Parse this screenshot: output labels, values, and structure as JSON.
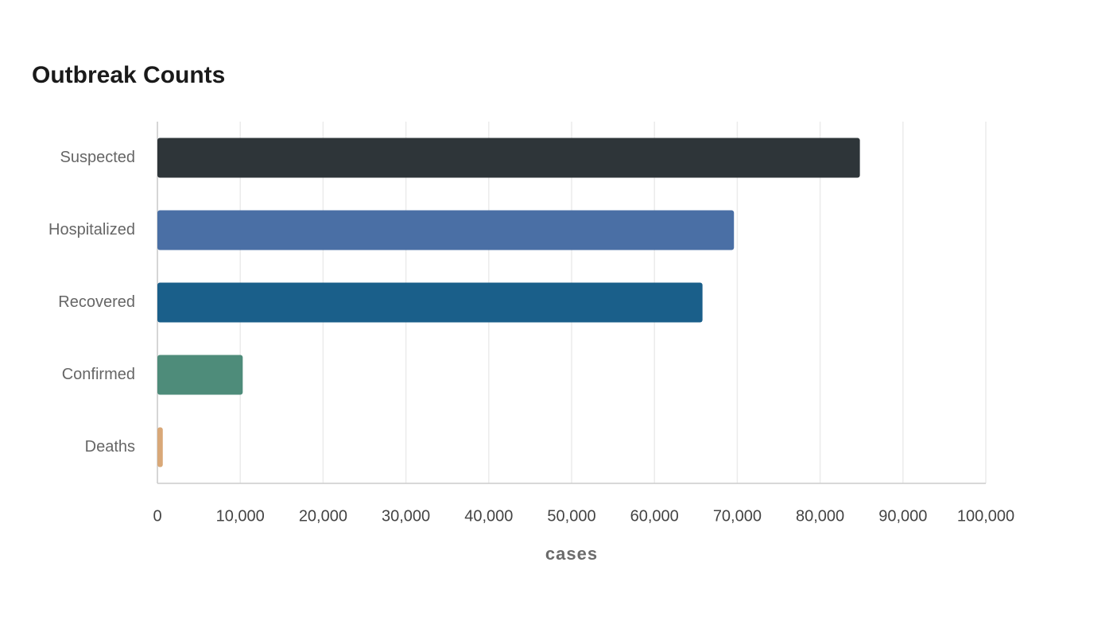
{
  "chart_data": {
    "type": "bar",
    "orientation": "horizontal",
    "title": "Outbreak Counts",
    "x_label": "cases",
    "categories": [
      "Suspected",
      "Hospitalized",
      "Recovered",
      "Confirmed",
      "Deaths"
    ],
    "values": [
      84800,
      69600,
      65800,
      10300,
      650
    ],
    "colors": [
      "#2e3539",
      "#4a6fa5",
      "#1a5f8a",
      "#4e8c7a",
      "#d9a878"
    ],
    "xlim": [
      0,
      100000
    ],
    "xticks": [
      0,
      {
        "value": 10000,
        "label": "10,000"
      },
      {
        "value": 20000,
        "label": "20,000"
      },
      {
        "value": 30000,
        "label": "30,000"
      },
      {
        "value": 40000,
        "label": "40,000"
      },
      {
        "value": 50000,
        "label": "50,000"
      },
      {
        "value": 60000,
        "label": "60,000"
      },
      {
        "value": 70000,
        "label": "70,000"
      },
      {
        "value": 80000,
        "label": "80,000"
      },
      {
        "value": 90000,
        "label": "90,000"
      },
      {
        "value": 100000,
        "label": "100,000"
      }
    ],
    "grid": true
  }
}
